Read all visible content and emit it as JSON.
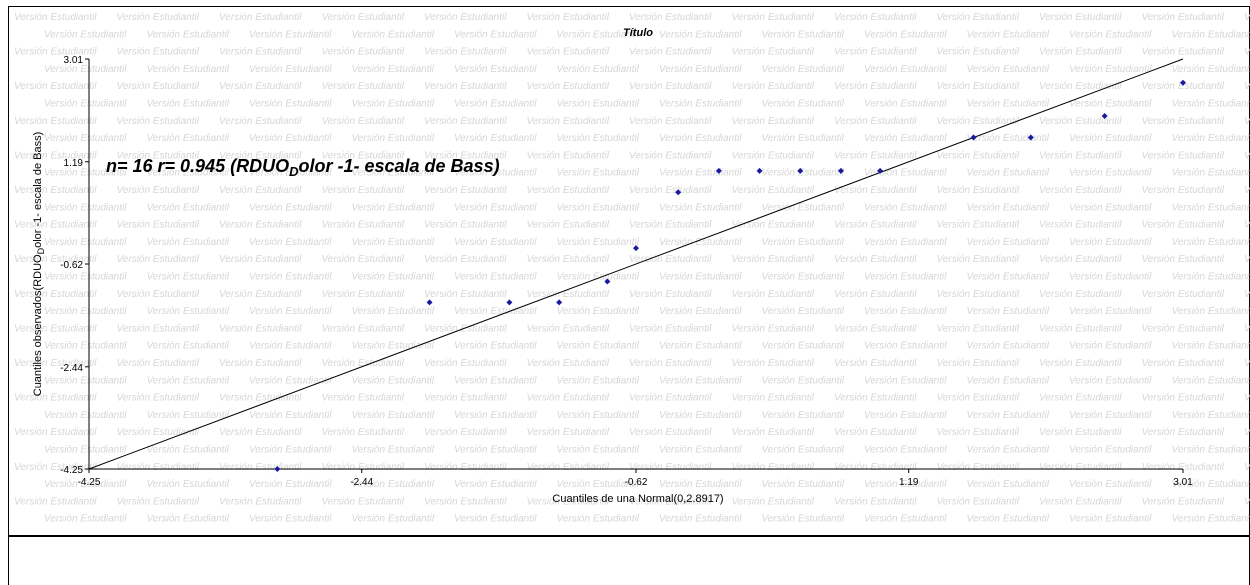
{
  "chart_data": {
    "type": "scatter",
    "title": "Título",
    "xlabel": "Cuantiles de una Normal(0,2.8917)",
    "ylabel": "Cuantiles observados(RDUO",
    "ylabel_sub": "D",
    "ylabel_rest": "olor -1- escala de Bass)",
    "annotation_main": "n= 16 r= 0.945 (RDUO",
    "annotation_sub": "D",
    "annotation_rest": "olor -1- escala de Bass)",
    "watermark": "Versión Estudiantil",
    "xlim": [
      -4.25,
      3.01
    ],
    "ylim": [
      -4.25,
      3.01
    ],
    "x_ticks": [
      "-4.25",
      "-2.44",
      "-0.62",
      "1.19",
      "3.01"
    ],
    "y_ticks": [
      "3.01",
      "1.19",
      "-0.62",
      "-2.44",
      "-4.25"
    ],
    "x_tick_values": [
      -4.25,
      -2.44,
      -0.62,
      1.19,
      3.01
    ],
    "y_tick_values": [
      3.01,
      1.19,
      -0.62,
      -2.44,
      -4.25
    ],
    "reference_line": [
      [
        -4.25,
        -4.25
      ],
      [
        3.01,
        3.01
      ]
    ],
    "points": [
      {
        "x": -3.0,
        "y": -4.25
      },
      {
        "x": -1.99,
        "y": -1.3
      },
      {
        "x": -1.46,
        "y": -1.3
      },
      {
        "x": -1.13,
        "y": -1.3
      },
      {
        "x": -0.81,
        "y": -0.93
      },
      {
        "x": -0.62,
        "y": -0.34
      },
      {
        "x": -0.34,
        "y": 0.65
      },
      {
        "x": -0.07,
        "y": 1.03
      },
      {
        "x": 0.2,
        "y": 1.03
      },
      {
        "x": 0.47,
        "y": 1.03
      },
      {
        "x": 0.74,
        "y": 1.03
      },
      {
        "x": 1.0,
        "y": 1.03
      },
      {
        "x": 1.62,
        "y": 1.62
      },
      {
        "x": 2.0,
        "y": 1.62
      },
      {
        "x": 2.49,
        "y": 2.0
      },
      {
        "x": 3.01,
        "y": 2.59
      }
    ],
    "colors": {
      "point": "#1a1aa0",
      "line": "#000000",
      "axis": "#000000",
      "watermark": "#d6d6d6"
    },
    "grid": false,
    "legend": "none"
  }
}
